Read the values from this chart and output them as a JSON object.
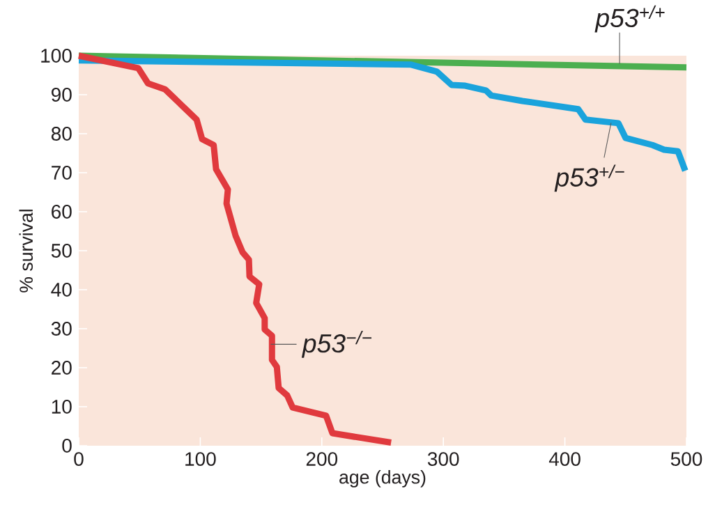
{
  "chart_data": {
    "type": "line",
    "xlabel": "age (days)",
    "ylabel": "% survival",
    "xlim": [
      0,
      500
    ],
    "ylim": [
      0,
      100
    ],
    "xticks": [
      0,
      100,
      200,
      300,
      400,
      500
    ],
    "yticks": [
      0,
      10,
      20,
      30,
      40,
      50,
      60,
      70,
      80,
      90,
      100
    ],
    "line_style": "solid",
    "marker": "none",
    "series": [
      {
        "color": "#4caf50",
        "x": [
          0,
          500
        ],
        "values": [
          100,
          97
        ]
      },
      {
        "color": "#1aa3dc",
        "x": [
          0,
          273.5,
          294.7,
          306.8,
          318,
          335,
          339.4,
          365,
          411,
          417,
          444,
          450,
          472,
          481.6,
          493,
          499
        ],
        "values": [
          98.8,
          97.7,
          95.9,
          92.5,
          92.3,
          91.1,
          89.8,
          88.4,
          86.3,
          83.6,
          82.7,
          78.9,
          77.1,
          75.9,
          75.5,
          70.5
        ]
      },
      {
        "color": "#e03a3e",
        "x": [
          0,
          49,
          57,
          71,
          97,
          101.5,
          111,
          113,
          122.7,
          121.6,
          129,
          134.8,
          140,
          140.5,
          148.5,
          146,
          153,
          153,
          159,
          159,
          163,
          164.5,
          171.5,
          176,
          203.5,
          208.7,
          257
        ],
        "values": [
          100,
          96.8,
          92.9,
          91.4,
          83.6,
          78.6,
          77.1,
          70.9,
          65.7,
          62.1,
          53.9,
          49.6,
          47.7,
          43.4,
          41.4,
          36.6,
          32.7,
          29.8,
          28.2,
          22,
          20.2,
          14.8,
          12.9,
          9.8,
          7.7,
          3.2,
          0.8
        ]
      }
    ],
    "annotations": [
      {
        "text": "p53$^{+/+}$",
        "x": 445,
        "y": 97.9
      },
      {
        "text": "p53$^{+/−}$",
        "x": 438,
        "y": 82.8
      },
      {
        "text": "p53$^{−/−}$",
        "x": 158,
        "y": 26
      }
    ]
  }
}
